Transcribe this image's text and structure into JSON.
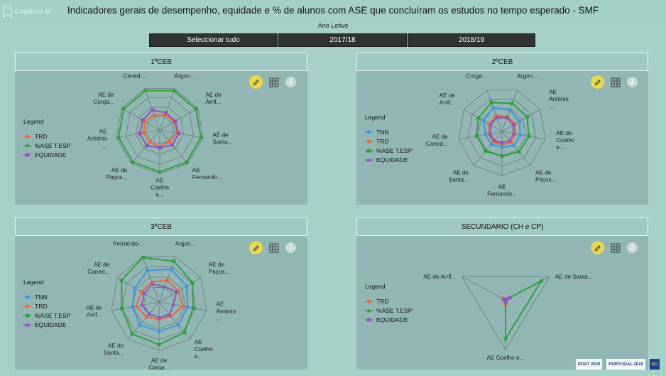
{
  "header": {
    "chapter_label": "Capítulo III",
    "title": "Indicadores gerais de desempenho, equidade e % de alunos com ASE que concluíram os estudos no tempo esperado - SMF"
  },
  "slicer": {
    "label": "Ano Letivo",
    "options": [
      "Seleccionar tudo",
      "2017/18",
      "2018/19"
    ]
  },
  "colors": {
    "TNN": "#3d95e0",
    "TRD": "#e9663d",
    "%ASE T.ESP": "#2ea13f",
    "EQUIDADE": "#8d55bf"
  },
  "icons": [
    "bookmark-icon",
    "pencil-icon",
    "table-icon",
    "info-icon"
  ],
  "panels": [
    {
      "title": "1ºCEB",
      "legend_title": "Legend",
      "legend": [
        "TRD",
        "%ASE T.ESP",
        "EQUIDADE"
      ],
      "chart_data": {
        "type": "radar",
        "axes": [
          [
            "AE de",
            "Caned..."
          ],
          [
            "AE de",
            "Argon..."
          ],
          [
            "AE de",
            "Arrif..."
          ],
          [
            "AE de",
            "Santa..."
          ],
          [
            "AE",
            "Fernando..."
          ],
          [
            "AE",
            "Coelho",
            "e..."
          ],
          [
            "AE de",
            "Paços..."
          ],
          [
            "AE",
            "António",
            "..."
          ],
          [
            "AE de",
            "Corga..."
          ]
        ],
        "grid": true,
        "series": [
          {
            "name": "TRD",
            "values": [
              0.36,
              0.36,
              0.38,
              0.4,
              0.34,
              0.38,
              0.36,
              0.37,
              0.4
            ]
          },
          {
            "name": "%ASE T.ESP",
            "values": [
              0.95,
              0.95,
              0.95,
              0.95,
              0.95,
              0.95,
              0.95,
              0.95,
              0.95
            ]
          },
          {
            "name": "EQUIDADE",
            "values": [
              0.48,
              0.42,
              0.4,
              0.44,
              0.44,
              0.4,
              0.46,
              0.46,
              0.45
            ]
          }
        ]
      }
    },
    {
      "title": "2ºCEB",
      "legend_title": "Legend",
      "legend": [
        "TNN",
        "TRD",
        "%ASE T.ESP",
        "EQUIDADE"
      ],
      "chart_data": {
        "type": "radar",
        "axes": [
          [
            "AE de",
            "Argon..."
          ],
          [
            "AE",
            "António",
            "..."
          ],
          [
            "AE de",
            "Coelho",
            "e..."
          ],
          [
            "AE de",
            "Paços..."
          ],
          [
            "AE",
            "Fernando..."
          ],
          [
            "AE de",
            "Santa..."
          ],
          [
            "AE de",
            "Caned..."
          ],
          [
            "AE de",
            "Arrif..."
          ],
          [
            "AE de",
            "Corga..."
          ]
        ],
        "grid": true,
        "series": [
          {
            "name": "TNN",
            "values": [
              0.52,
              0.46,
              0.42,
              0.42,
              0.36,
              0.38,
              0.38,
              0.48,
              0.58
            ]
          },
          {
            "name": "TRD",
            "values": [
              0.36,
              0.34,
              0.3,
              0.32,
              0.28,
              0.3,
              0.3,
              0.34,
              0.38
            ]
          },
          {
            "name": "%ASE T.ESP",
            "values": [
              0.68,
              0.66,
              0.62,
              0.6,
              0.56,
              0.58,
              0.58,
              0.62,
              0.7
            ]
          },
          {
            "name": "EQUIDADE",
            "values": [
              0.34,
              0.3,
              0.27,
              0.27,
              0.25,
              0.27,
              0.27,
              0.3,
              0.34
            ]
          }
        ]
      }
    },
    {
      "title": "3ºCEB",
      "legend_title": "Legend",
      "legend": [
        "TNN",
        "TRD",
        "%ASE T.ESP",
        "EQUIDADE"
      ],
      "chart_data": {
        "type": "radar",
        "axes": [
          [
            "AE",
            "Fernando..."
          ],
          [
            "AE de",
            "Argon..."
          ],
          [
            "AE de",
            "Paços..."
          ],
          [
            "AE",
            "António",
            "..."
          ],
          [
            "AE",
            "Coelho",
            "e..."
          ],
          [
            "AE de",
            "Corga..."
          ],
          [
            "AE de",
            "Santa..."
          ],
          [
            "AE de",
            "Arrif..."
          ],
          [
            "AE de",
            "Caned..."
          ]
        ],
        "grid": true,
        "series": [
          {
            "name": "TNN",
            "values": [
              0.7,
              0.72,
              0.66,
              0.6,
              0.62,
              0.6,
              0.62,
              0.56,
              0.58
            ]
          },
          {
            "name": "TRD",
            "values": [
              0.44,
              0.48,
              0.46,
              0.5,
              0.38,
              0.36,
              0.4,
              0.48,
              0.42
            ]
          },
          {
            "name": "%ASE T.ESP",
            "values": [
              0.98,
              0.9,
              0.8,
              0.72,
              0.82,
              0.88,
              0.86,
              0.78,
              0.9
            ]
          },
          {
            "name": "EQUIDADE",
            "values": [
              0.4,
              0.34,
              0.42,
              0.3,
              0.34,
              0.32,
              0.32,
              0.36,
              0.36
            ]
          }
        ]
      }
    },
    {
      "title": "SECUNDÁRIO (CH e CP)",
      "legend_title": "Legend",
      "legend": [
        "TRD",
        "%ASE T.ESP",
        "EQUIDADE"
      ],
      "chart_data": {
        "type": "radar",
        "axes": [
          [
            "AE de Arrif..."
          ],
          [
            "AE de Santa..."
          ],
          [
            "AE Coelho e..."
          ]
        ],
        "grid": false,
        "series": [
          {
            "name": "TRD",
            "values": [
              0.06,
              0.03,
              0.08
            ]
          },
          {
            "name": "%ASE T.ESP",
            "values": [
              0.0,
              0.82,
              0.78
            ]
          },
          {
            "name": "EQUIDADE",
            "values": [
              0.03,
              0.1,
              0.05
            ]
          }
        ]
      }
    }
  ],
  "footer": {
    "logos": [
      "POAT 2020",
      "PORTUGAL 2020",
      "EU"
    ]
  }
}
